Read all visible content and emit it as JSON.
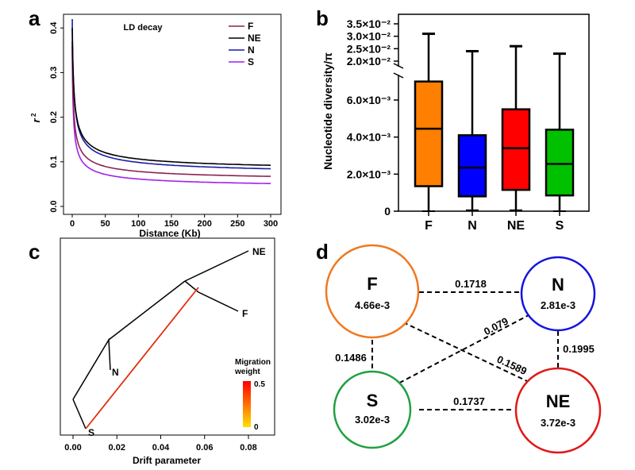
{
  "panels": {
    "a": "a",
    "b": "b",
    "c": "c",
    "d": "d"
  },
  "chart_data": [
    {
      "panel": "a",
      "type": "line",
      "title": "LD decay",
      "xlabel": "Distance (Kb)",
      "ylabel": "r2",
      "xlim": [
        0,
        300
      ],
      "ylim": [
        0,
        0.42
      ],
      "xticks": [
        "0",
        "50",
        "100",
        "150",
        "200",
        "250",
        "300"
      ],
      "yticks": [
        "0.0",
        "0.1",
        "0.2",
        "0.3",
        "0.4"
      ],
      "legend": [
        "F",
        "NE",
        "N",
        "S"
      ],
      "legend_position": "top-right",
      "series": [
        {
          "name": "F",
          "color": "#8b2252",
          "r2_at_0": 0.37,
          "asymptote": 0.054,
          "decay_kb": 12,
          "x": [
            0,
            5,
            10,
            20,
            30,
            50,
            75,
            100,
            150,
            200,
            250,
            300
          ],
          "y": [
            0.37,
            0.158,
            0.118,
            0.088,
            0.077,
            0.068,
            0.063,
            0.061,
            0.058,
            0.056,
            0.055,
            0.054
          ]
        },
        {
          "name": "NE",
          "color": "#000000",
          "r2_at_0": 0.4,
          "asymptote": 0.075,
          "decay_kb": 18,
          "x": [
            0,
            5,
            10,
            20,
            30,
            50,
            75,
            100,
            150,
            200,
            250,
            300
          ],
          "y": [
            0.4,
            0.205,
            0.165,
            0.13,
            0.115,
            0.102,
            0.094,
            0.089,
            0.083,
            0.079,
            0.077,
            0.075
          ]
        },
        {
          "name": "N",
          "color": "#1a1aa6",
          "r2_at_0": 0.43,
          "asymptote": 0.067,
          "decay_kb": 15,
          "x": [
            0,
            5,
            10,
            20,
            30,
            50,
            75,
            100,
            150,
            200,
            250,
            300
          ],
          "y": [
            0.43,
            0.182,
            0.14,
            0.108,
            0.097,
            0.087,
            0.081,
            0.077,
            0.072,
            0.07,
            0.068,
            0.067
          ]
        },
        {
          "name": "S",
          "color": "#a020f0",
          "r2_at_0": 0.36,
          "asymptote": 0.039,
          "decay_kb": 10,
          "x": [
            0,
            5,
            10,
            20,
            30,
            50,
            75,
            100,
            150,
            200,
            250,
            300
          ],
          "y": [
            0.36,
            0.125,
            0.09,
            0.066,
            0.057,
            0.05,
            0.046,
            0.044,
            0.042,
            0.041,
            0.04,
            0.039
          ]
        }
      ]
    },
    {
      "panel": "b",
      "type": "box",
      "ylabel": "Nucleotide diversity/π",
      "categories": [
        "F",
        "N",
        "NE",
        "S"
      ],
      "yticks_lower": [
        "0",
        "2.0×10⁻³",
        "4.0×10⁻³",
        "6.0×10⁻³"
      ],
      "yticks_upper": [
        "2.0×10⁻²",
        "2.5×10⁻²",
        "3.0×10⁻²",
        "3.5×10⁻²"
      ],
      "axis_break": [
        0.0072,
        0.02
      ],
      "boxes": [
        {
          "name": "F",
          "color": "#ff7f00",
          "min": 0.0,
          "q1": 0.00135,
          "median": 0.00445,
          "q3": 0.007,
          "max": 0.031
        },
        {
          "name": "N",
          "color": "#0000ff",
          "min": 5e-05,
          "q1": 0.0008,
          "median": 0.00235,
          "q3": 0.0041,
          "max": 0.024
        },
        {
          "name": "NE",
          "color": "#ff0000",
          "min": 5e-05,
          "q1": 0.00115,
          "median": 0.0034,
          "q3": 0.0055,
          "max": 0.026
        },
        {
          "name": "S",
          "color": "#00c000",
          "min": 0.0,
          "q1": 0.00085,
          "median": 0.00255,
          "q3": 0.0044,
          "max": 0.023
        }
      ]
    },
    {
      "panel": "c",
      "type": "tree",
      "xlabel": "Drift parameter",
      "xticks": [
        "0.00",
        "0.02",
        "0.04",
        "0.06",
        "0.08"
      ],
      "xlim": [
        -0.002,
        0.088
      ],
      "legend_title": [
        "Migration",
        "weight"
      ],
      "legend_scale": [
        "0.5",
        "0"
      ],
      "leaves": [
        "NE",
        "F",
        "N",
        "S"
      ],
      "migration": {
        "from": "S",
        "to": "F-NE branch",
        "weight": 0.45,
        "color": "#e03010"
      }
    },
    {
      "panel": "d",
      "type": "network",
      "nodes": [
        {
          "name": "F",
          "value": "4.66e-3",
          "color": "#f07820"
        },
        {
          "name": "N",
          "value": "2.81e-3",
          "color": "#1414e0"
        },
        {
          "name": "S",
          "value": "3.02e-3",
          "color": "#20a040"
        },
        {
          "name": "NE",
          "value": "3.72e-3",
          "color": "#e01818"
        }
      ],
      "edges": [
        {
          "from": "F",
          "to": "N",
          "label": "0.1718"
        },
        {
          "from": "F",
          "to": "S",
          "label": "0.1486"
        },
        {
          "from": "F",
          "to": "NE",
          "label": "0.1589"
        },
        {
          "from": "N",
          "to": "S",
          "label": "0.079"
        },
        {
          "from": "N",
          "to": "NE",
          "label": "0.1995"
        },
        {
          "from": "S",
          "to": "NE",
          "label": "0.1737"
        }
      ]
    }
  ]
}
